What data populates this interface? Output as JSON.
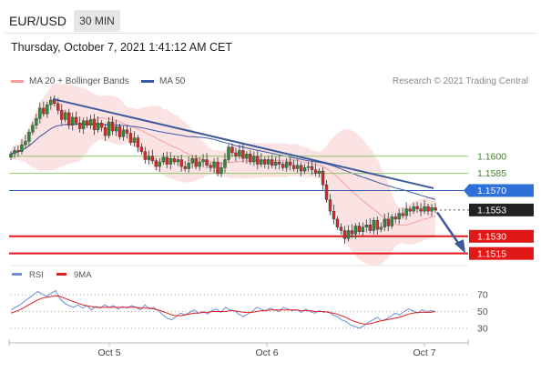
{
  "header": {
    "pair": "EUR/USD",
    "timeframe": "30 MIN",
    "datetime": "Thursday, October 7, 2021 1:41:12 AM CET"
  },
  "legend": {
    "ma20": "MA 20 + Bollinger Bands",
    "ma50": "MA 50",
    "credit": "Research © 2021 Trading Central",
    "rsi": "RSI",
    "ma9": "9MA"
  },
  "colors": {
    "ma20": "#f4a0a0",
    "band": "#fbd9d9",
    "ma50": "#3b5aa8",
    "resist_green": "#8fc66f",
    "blue_level": "#2f5fb5",
    "red_level": "#e01818",
    "trend": "#3c5a9c",
    "rsi": "#6d8fd6",
    "rsi_ma": "#e02020",
    "price_tag": "#222222",
    "blue_tag": "#2f6fd8"
  },
  "chart_data": [
    {
      "type": "candlestick",
      "title": "EUR/USD",
      "yrange": [
        1.1506,
        1.1657
      ],
      "x_ticks": [
        "Oct 5",
        "Oct 6",
        "Oct 7"
      ],
      "levels": [
        {
          "value": 1.16,
          "label": "1.1600",
          "kind": "resistance"
        },
        {
          "value": 1.1585,
          "label": "1.1585",
          "kind": "resistance"
        },
        {
          "value": 1.157,
          "label": "1.1570",
          "kind": "pivot"
        },
        {
          "value": 1.1553,
          "label": "1.1553",
          "kind": "last_price"
        },
        {
          "value": 1.153,
          "label": "1.1530",
          "kind": "support"
        },
        {
          "value": 1.1515,
          "label": "1.1515",
          "kind": "support"
        }
      ],
      "close_series": [
        1.1602,
        1.1605,
        1.1604,
        1.161,
        1.1613,
        1.1621,
        1.1627,
        1.1633,
        1.1642,
        1.1637,
        1.1645,
        1.1649,
        1.1646,
        1.164,
        1.1632,
        1.1638,
        1.1627,
        1.1634,
        1.1629,
        1.1624,
        1.1631,
        1.1627,
        1.1632,
        1.1623,
        1.1629,
        1.1625,
        1.1618,
        1.163,
        1.1622,
        1.1626,
        1.1617,
        1.1623,
        1.162,
        1.1612,
        1.1616,
        1.1608,
        1.1604,
        1.1597,
        1.16,
        1.1596,
        1.1591,
        1.1595,
        1.1599,
        1.1593,
        1.1598,
        1.1595,
        1.1597,
        1.1591,
        1.1589,
        1.1594,
        1.1598,
        1.1591,
        1.1595,
        1.1597,
        1.1592,
        1.159,
        1.1595,
        1.1585,
        1.159,
        1.1597,
        1.1608,
        1.1603,
        1.16,
        1.1605,
        1.1598,
        1.1602,
        1.1595,
        1.16,
        1.1593,
        1.1597,
        1.1593,
        1.1597,
        1.1592,
        1.1595,
        1.1593,
        1.159,
        1.1595,
        1.1592,
        1.1589,
        1.1592,
        1.1587,
        1.159,
        1.1591,
        1.1588,
        1.1585,
        1.1587,
        1.1575,
        1.1562,
        1.1552,
        1.1545,
        1.1538,
        1.1535,
        1.1528,
        1.1535,
        1.1532,
        1.1539,
        1.1534,
        1.1538,
        1.154,
        1.1535,
        1.1544,
        1.1536,
        1.1538,
        1.1545,
        1.1539,
        1.1547,
        1.1545,
        1.155,
        1.1548,
        1.1554,
        1.1552,
        1.1556,
        1.1554,
        1.1552,
        1.1556,
        1.1552,
        1.1555,
        1.1553
      ]
    },
    {
      "type": "line",
      "title": "RSI",
      "yticks": [
        70,
        50,
        30
      ],
      "series": [
        {
          "name": "RSI",
          "values": [
            52,
            55,
            58,
            62,
            66,
            70,
            74,
            71,
            68,
            72,
            75,
            65,
            60,
            57,
            55,
            58,
            54,
            57,
            52,
            56,
            54,
            58,
            55,
            57,
            53,
            56,
            54,
            57,
            55,
            52,
            58,
            53,
            55,
            51,
            46,
            42,
            40,
            44,
            48,
            46,
            49,
            52,
            48,
            50,
            47,
            51,
            53,
            49,
            55,
            52,
            51,
            47,
            44,
            47,
            50,
            55,
            53,
            51,
            54,
            52,
            50,
            55,
            53,
            51,
            52,
            49,
            53,
            50,
            48,
            51,
            49,
            50,
            46,
            44,
            40,
            38,
            34,
            32,
            30,
            33,
            37,
            40,
            43,
            39,
            41,
            44,
            48,
            46,
            50,
            53,
            51,
            48,
            52,
            50,
            51,
            50
          ]
        },
        {
          "name": "9MA",
          "values": [
            48,
            50,
            52,
            55,
            58,
            61,
            64,
            66,
            67,
            68,
            69,
            68,
            66,
            64,
            62,
            60,
            58,
            57,
            56,
            55,
            55,
            55,
            55,
            55,
            55,
            55,
            55,
            55,
            55,
            54,
            54,
            54,
            53,
            52,
            50,
            48,
            46,
            45,
            45,
            46,
            47,
            48,
            48,
            49,
            49,
            50,
            50,
            50,
            50,
            51,
            51,
            50,
            49,
            49,
            49,
            50,
            51,
            51,
            52,
            52,
            52,
            52,
            52,
            52,
            52,
            51,
            51,
            51,
            50,
            50,
            50,
            49,
            48,
            47,
            45,
            43,
            40,
            38,
            36,
            35,
            35,
            36,
            38,
            39,
            40,
            41,
            42,
            43,
            45,
            47,
            48,
            49,
            49,
            49,
            49,
            50
          ]
        }
      ]
    }
  ]
}
